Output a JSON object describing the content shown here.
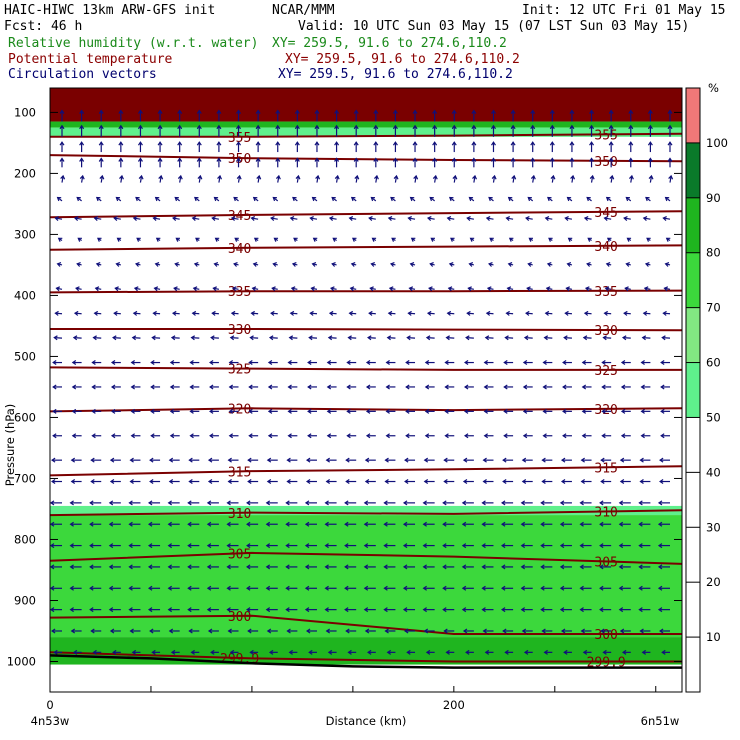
{
  "header": {
    "line1_left": "HAIC-HIWC 13km ARW-GFS init",
    "line1_mid": "NCAR/MMM",
    "line1_right": "Init: 12 UTC Fri 01 May 15",
    "line2_left": "Fcst:    46 h",
    "line2_right": "Valid: 10 UTC Sun 03 May 15 (07 LST Sun 03 May 15)",
    "fields": [
      {
        "name": "Relative humidity (w.r.t. water)",
        "xy": "XY= 259.5, 91.6 to 274.6,110.2",
        "color": "#1a8a1a"
      },
      {
        "name": "Potential temperature",
        "xy": "XY= 259.5, 91.6 to 274.6,110.2",
        "color": "#8b0000"
      },
      {
        "name": "Circulation vectors",
        "xy": "XY= 259.5, 91.6 to 274.6,110.2",
        "color": "#00006e"
      }
    ]
  },
  "colors": {
    "theta_line": "#7a0000",
    "vector": "#10107a",
    "terrain": "#000000"
  },
  "chart_data": {
    "type": "heatmap",
    "xlabel": "Distance (km)",
    "ylabel": "Pressure (hPa)",
    "xlim": [
      0,
      313
    ],
    "ylim": [
      1050,
      60
    ],
    "x_ticks": [
      0,
      200
    ],
    "y_ticks": [
      100,
      200,
      300,
      400,
      500,
      600,
      700,
      800,
      900,
      1000
    ],
    "left_end_label": "4n53w",
    "right_end_label": "6n51w",
    "colorbar": {
      "unit": "%",
      "ticks": [
        10,
        20,
        30,
        40,
        50,
        60,
        70,
        80,
        90,
        100
      ],
      "bands": [
        {
          "from": 50,
          "to": 60,
          "color": "#5ff08c"
        },
        {
          "from": 60,
          "to": 70,
          "color": "#82e882"
        },
        {
          "from": 70,
          "to": 80,
          "color": "#3cd83c"
        },
        {
          "from": 80,
          "to": 90,
          "color": "#1fb51f"
        },
        {
          "from": 90,
          "to": 100,
          "color": "#0a7a2a"
        },
        {
          "from": 100,
          "to": 110,
          "color": "#f07878"
        },
        {
          "from": 110,
          "to": 120,
          "color": "#7a0000"
        }
      ]
    },
    "rh_regions": [
      {
        "rh_min": 110,
        "p_top": 60,
        "p_bottom": 115
      },
      {
        "rh_min": 80,
        "p_top": 115,
        "p_bottom": 125
      },
      {
        "rh_min": 50,
        "p_top": 125,
        "p_bottom": 140
      },
      {
        "rh_min": 50,
        "p_top": 745,
        "p_bottom": 760
      },
      {
        "rh_min": 70,
        "p_top": 760,
        "p_bottom": 960
      },
      {
        "rh_min": 80,
        "p_top": 960,
        "p_bottom": 1005
      }
    ],
    "theta_contours": [
      {
        "value": 355,
        "x": [
          0,
          100,
          200,
          313
        ],
        "p": [
          140,
          140,
          138,
          135
        ]
      },
      {
        "value": 350,
        "x": [
          0,
          100,
          200,
          313
        ],
        "p": [
          170,
          175,
          178,
          180
        ]
      },
      {
        "value": 345,
        "x": [
          0,
          100,
          200,
          313
        ],
        "p": [
          272,
          268,
          265,
          262
        ]
      },
      {
        "value": 340,
        "x": [
          0,
          100,
          200,
          313
        ],
        "p": [
          325,
          322,
          320,
          318
        ]
      },
      {
        "value": 335,
        "x": [
          0,
          100,
          200,
          313
        ],
        "p": [
          395,
          393,
          393,
          392
        ]
      },
      {
        "value": 330,
        "x": [
          0,
          100,
          200,
          313
        ],
        "p": [
          455,
          455,
          456,
          457
        ]
      },
      {
        "value": 325,
        "x": [
          0,
          100,
          200,
          313
        ],
        "p": [
          518,
          520,
          522,
          522
        ]
      },
      {
        "value": 320,
        "x": [
          0,
          100,
          200,
          313
        ],
        "p": [
          590,
          585,
          588,
          585
        ]
      },
      {
        "value": 315,
        "x": [
          0,
          100,
          200,
          313
        ],
        "p": [
          695,
          688,
          685,
          680
        ]
      },
      {
        "value": 310,
        "x": [
          0,
          100,
          200,
          313
        ],
        "p": [
          760,
          756,
          758,
          752
        ]
      },
      {
        "value": 305,
        "x": [
          0,
          100,
          200,
          313
        ],
        "p": [
          835,
          822,
          828,
          840
        ]
      },
      {
        "value": 300,
        "x": [
          0,
          100,
          200,
          313
        ],
        "p": [
          928,
          925,
          955,
          955
        ]
      },
      {
        "value": 299.9,
        "x": [
          0,
          100,
          200,
          313
        ],
        "p": [
          985,
          995,
          1000,
          1000
        ]
      }
    ],
    "wind_rows": [
      {
        "p": 115,
        "u": 0,
        "w": 1.0
      },
      {
        "p": 140,
        "u": 0,
        "w": 1.0
      },
      {
        "p": 165,
        "u": 0,
        "w": 0.9
      },
      {
        "p": 190,
        "u": 0,
        "w": 0.8
      },
      {
        "p": 215,
        "u": 0.1,
        "w": 0.6
      },
      {
        "p": 245,
        "u": -0.4,
        "w": 0.3
      },
      {
        "p": 275,
        "u": -0.6,
        "w": 0.1
      },
      {
        "p": 310,
        "u": -0.3,
        "w": 0.2
      },
      {
        "p": 350,
        "u": -0.4,
        "w": 0.1
      },
      {
        "p": 390,
        "u": -0.5,
        "w": 0.1
      },
      {
        "p": 430,
        "u": -0.6,
        "w": 0.05
      },
      {
        "p": 470,
        "u": -0.7,
        "w": 0.05
      },
      {
        "p": 510,
        "u": -0.8,
        "w": 0.0
      },
      {
        "p": 550,
        "u": -0.8,
        "w": 0.0
      },
      {
        "p": 590,
        "u": -0.8,
        "w": 0.0
      },
      {
        "p": 630,
        "u": -0.8,
        "w": 0.0
      },
      {
        "p": 670,
        "u": -0.9,
        "w": 0.0
      },
      {
        "p": 705,
        "u": -0.9,
        "w": 0.0
      },
      {
        "p": 740,
        "u": -1.0,
        "w": 0.0
      },
      {
        "p": 775,
        "u": -1.0,
        "w": 0.0
      },
      {
        "p": 810,
        "u": -1.0,
        "w": 0.0
      },
      {
        "p": 845,
        "u": -1.0,
        "w": 0.0
      },
      {
        "p": 880,
        "u": -1.0,
        "w": 0.0
      },
      {
        "p": 915,
        "u": -1.0,
        "w": 0.0
      },
      {
        "p": 950,
        "u": -0.9,
        "w": 0.0
      },
      {
        "p": 985,
        "u": -0.7,
        "w": 0.0
      }
    ],
    "terrain": {
      "x": [
        0,
        50,
        100,
        150,
        200,
        250,
        313
      ],
      "p": [
        990,
        995,
        1003,
        1008,
        1010,
        1010,
        1010
      ]
    }
  }
}
